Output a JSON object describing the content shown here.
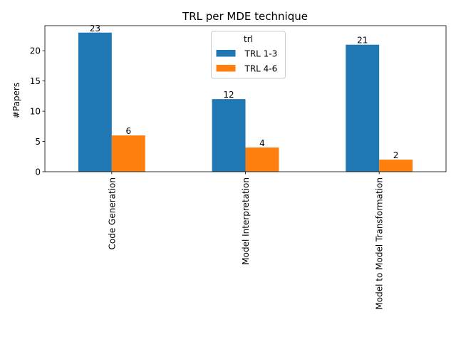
{
  "chart_data": {
    "type": "bar",
    "title": "TRL per MDE technique",
    "xlabel": "",
    "ylabel": "#Papers",
    "categories": [
      "Code Generation",
      "Model Interpretation",
      "Model to Model Transformation"
    ],
    "series": [
      {
        "name": "TRL 1-3",
        "values": [
          23,
          12,
          21
        ],
        "color": "#1f77b4"
      },
      {
        "name": "TRL 4-6",
        "values": [
          6,
          4,
          2
        ],
        "color": "#ff7f0e"
      }
    ],
    "ylim": [
      0,
      24.15
    ],
    "yticks": [
      0,
      5,
      10,
      15,
      20
    ],
    "legend": {
      "title": "trl",
      "placement": "upper-center"
    },
    "grid": false
  }
}
